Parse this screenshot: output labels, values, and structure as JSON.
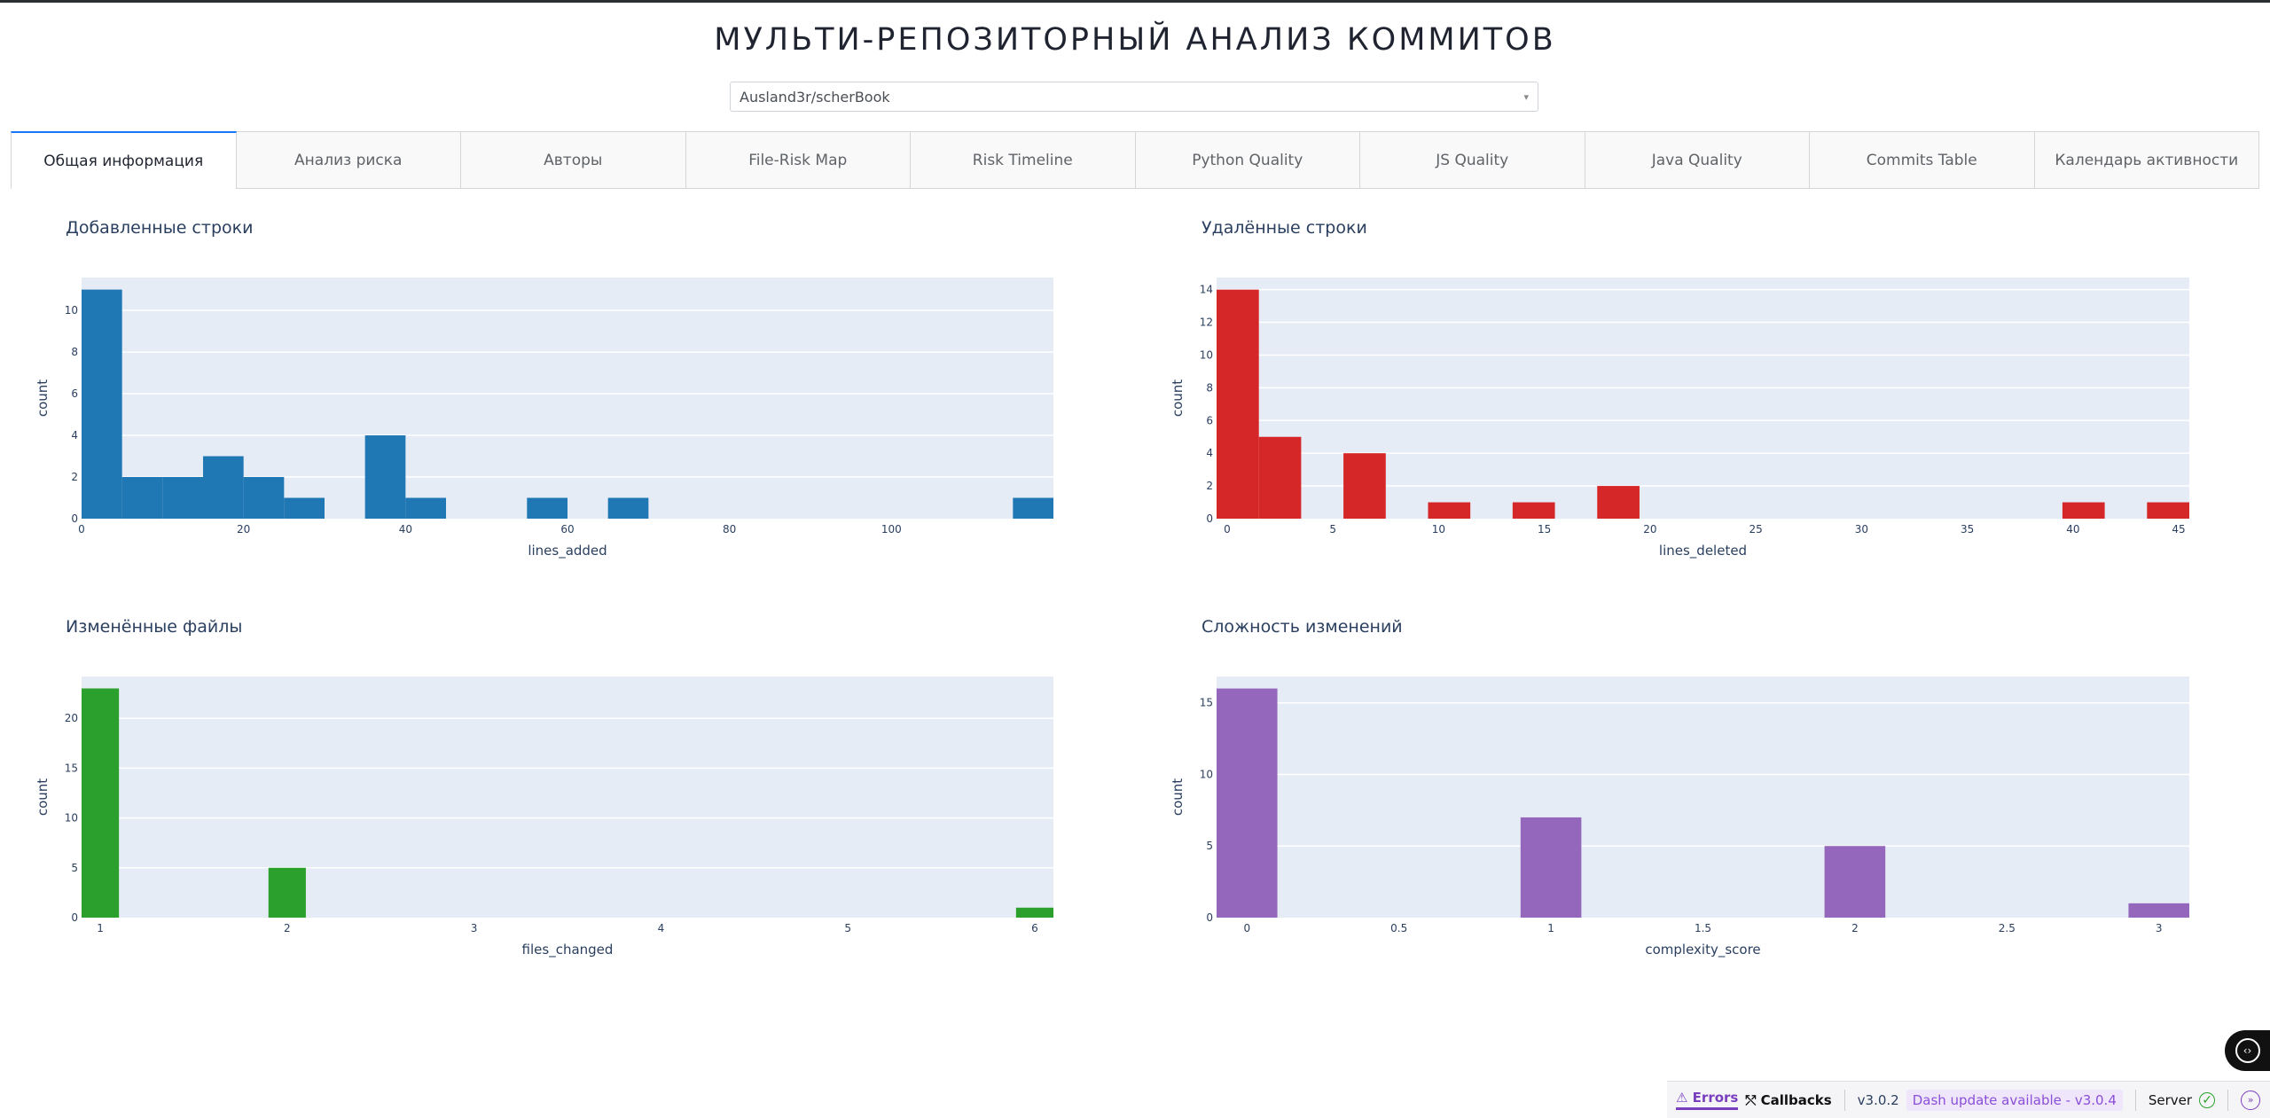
{
  "page": {
    "title": "МУЛЬТИ-РЕПОЗИТОРНЫЙ АНАЛИЗ КОММИТОВ",
    "repo_select": {
      "value": "Ausland3r/scherBook",
      "caret": "▾"
    },
    "tabs": [
      {
        "label": "Общая информация",
        "active": true
      },
      {
        "label": "Анализ риска",
        "active": false
      },
      {
        "label": "Авторы",
        "active": false
      },
      {
        "label": "File-Risk Map",
        "active": false
      },
      {
        "label": "Risk Timeline",
        "active": false
      },
      {
        "label": "Python Quality",
        "active": false
      },
      {
        "label": "JS Quality",
        "active": false
      },
      {
        "label": "Java Quality",
        "active": false
      },
      {
        "label": "Commits Table",
        "active": false
      },
      {
        "label": "Календарь активности",
        "active": false
      }
    ]
  },
  "chart_data": [
    {
      "type": "bar",
      "title": "Добавленные строки",
      "xlabel": "lines_added",
      "ylabel": "count",
      "color": "#1f77b4",
      "xlim": [
        0,
        120
      ],
      "ylim": [
        0,
        11.58
      ],
      "xticks": [
        0,
        20,
        40,
        60,
        80,
        100
      ],
      "yticks": [
        0,
        2,
        4,
        6,
        8,
        10
      ],
      "bins": [
        {
          "x0": 0,
          "x1": 5,
          "count": 11
        },
        {
          "x0": 5,
          "x1": 10,
          "count": 2
        },
        {
          "x0": 10,
          "x1": 15,
          "count": 2
        },
        {
          "x0": 15,
          "x1": 20,
          "count": 3
        },
        {
          "x0": 20,
          "x1": 25,
          "count": 2
        },
        {
          "x0": 25,
          "x1": 30,
          "count": 1
        },
        {
          "x0": 35,
          "x1": 40,
          "count": 4
        },
        {
          "x0": 40,
          "x1": 45,
          "count": 1
        },
        {
          "x0": 55,
          "x1": 60,
          "count": 1
        },
        {
          "x0": 65,
          "x1": 70,
          "count": 1
        },
        {
          "x0": 115,
          "x1": 120,
          "count": 1
        }
      ]
    },
    {
      "type": "bar",
      "title": "Удалённые строки",
      "xlabel": "lines_deleted",
      "ylabel": "count",
      "color": "#d62728",
      "xlim": [
        -0.5,
        45.5
      ],
      "ylim": [
        0,
        14.74
      ],
      "xticks": [
        0,
        5,
        10,
        15,
        20,
        25,
        30,
        35,
        40,
        45
      ],
      "yticks": [
        0,
        2,
        4,
        6,
        8,
        10,
        12,
        14
      ],
      "bins": [
        {
          "x0": -0.5,
          "x1": 1.5,
          "count": 14
        },
        {
          "x0": 1.5,
          "x1": 3.5,
          "count": 5
        },
        {
          "x0": 5.5,
          "x1": 7.5,
          "count": 4
        },
        {
          "x0": 9.5,
          "x1": 11.5,
          "count": 1
        },
        {
          "x0": 13.5,
          "x1": 15.5,
          "count": 1
        },
        {
          "x0": 17.5,
          "x1": 19.5,
          "count": 2
        },
        {
          "x0": 39.5,
          "x1": 41.5,
          "count": 1
        },
        {
          "x0": 43.5,
          "x1": 45.5,
          "count": 1
        }
      ]
    },
    {
      "type": "bar",
      "title": "Изменённые файлы",
      "xlabel": "files_changed",
      "ylabel": "count",
      "color": "#2ca02c",
      "xlim": [
        0.9,
        6.1
      ],
      "ylim": [
        0,
        24.2
      ],
      "xticks": [
        1,
        2,
        3,
        4,
        5,
        6
      ],
      "yticks": [
        0,
        5,
        10,
        15,
        20
      ],
      "bins": [
        {
          "x0": 0.9,
          "x1": 1.1,
          "count": 23
        },
        {
          "x0": 1.9,
          "x1": 2.1,
          "count": 5
        },
        {
          "x0": 5.9,
          "x1": 6.1,
          "count": 1
        }
      ]
    },
    {
      "type": "bar",
      "title": "Сложность изменений",
      "xlabel": "complexity_score",
      "ylabel": "count",
      "color": "#9467bd",
      "xlim": [
        -0.1,
        3.1
      ],
      "ylim": [
        0,
        16.84
      ],
      "xticks": [
        0,
        0.5,
        1,
        1.5,
        2,
        2.5,
        3
      ],
      "yticks": [
        0,
        5,
        10,
        15
      ],
      "bins": [
        {
          "x0": -0.1,
          "x1": 0.1,
          "count": 16
        },
        {
          "x0": 0.9,
          "x1": 1.1,
          "count": 7
        },
        {
          "x0": 1.9,
          "x1": 2.1,
          "count": 5
        },
        {
          "x0": 2.9,
          "x1": 3.1,
          "count": 1
        }
      ]
    }
  ],
  "devtools": {
    "errors_label": "Errors",
    "callbacks_label": "Callbacks",
    "version": "v3.0.2",
    "update_label": "Dash update available - v3.0.4",
    "server_label": "Server"
  }
}
